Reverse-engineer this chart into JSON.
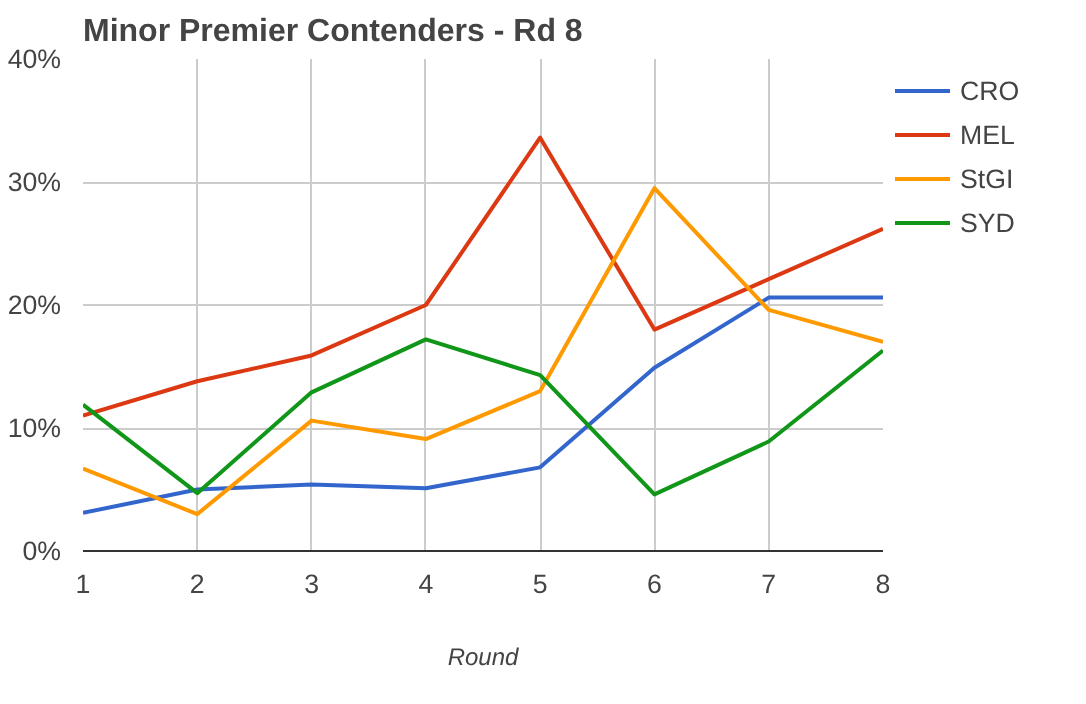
{
  "chart_data": {
    "type": "line",
    "title": "Minor Premier Contenders - Rd 8",
    "xlabel": "Round",
    "x": [
      1,
      2,
      3,
      4,
      5,
      6,
      7,
      8
    ],
    "series": [
      {
        "name": "CRO",
        "color": "#3366cc",
        "values": [
          3.1,
          5.0,
          5.4,
          5.1,
          6.8,
          14.9,
          20.6,
          20.6
        ]
      },
      {
        "name": "MEL",
        "color": "#dc3912",
        "values": [
          11.0,
          13.8,
          15.9,
          20.0,
          33.6,
          18.0,
          22.1,
          26.2
        ]
      },
      {
        "name": "StGI",
        "color": "#ff9900",
        "values": [
          6.7,
          3.0,
          10.6,
          9.1,
          13.0,
          29.5,
          19.6,
          17.0
        ]
      },
      {
        "name": "SYD",
        "color": "#109618",
        "values": [
          11.9,
          4.7,
          12.9,
          17.2,
          14.3,
          4.6,
          8.9,
          16.3
        ]
      }
    ],
    "xlim": [
      1,
      8
    ],
    "xticks": [
      1,
      2,
      3,
      4,
      5,
      6,
      7,
      8
    ],
    "ylim": [
      0,
      40
    ],
    "yticks": [
      {
        "value": 0,
        "label": "0%"
      },
      {
        "value": 10,
        "label": "10%"
      },
      {
        "value": 20,
        "label": "20%"
      },
      {
        "value": 30,
        "label": "30%"
      },
      {
        "value": 40,
        "label": "40%"
      }
    ],
    "grid": true,
    "legend": "right",
    "marker": "none",
    "line_style": "solid"
  }
}
